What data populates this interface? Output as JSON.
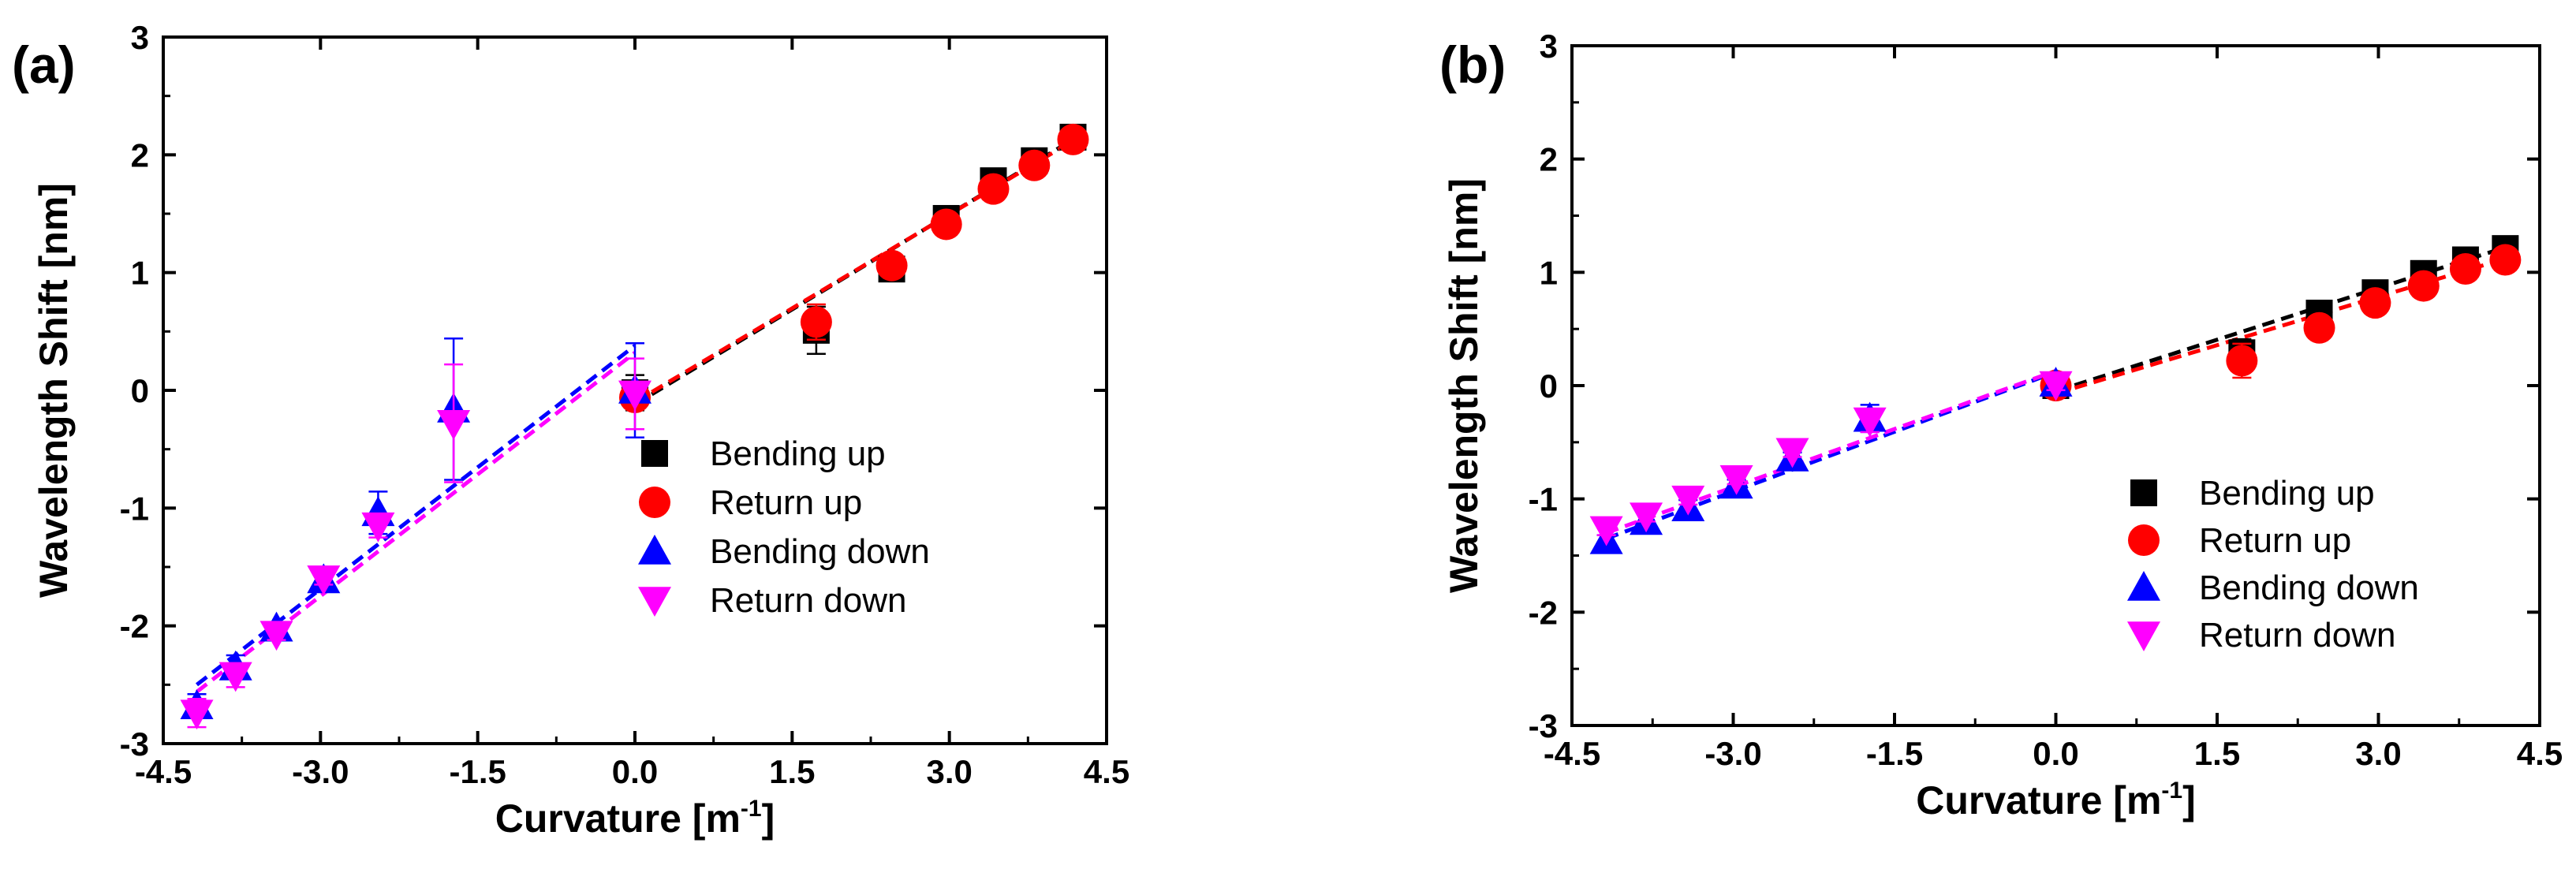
{
  "chart_data": [
    {
      "type": "scatter",
      "panel_label": "(a)",
      "xlabel": "Curvature [m",
      "xlabel_sup": "-1",
      "xlabel_close": "]",
      "ylabel": "Wavelength Shift [nm]",
      "xlim": [
        -4.5,
        4.5
      ],
      "ylim": [
        -3,
        3
      ],
      "xticks": [
        "-4.5",
        "-3.0",
        "-1.5",
        "0.0",
        "1.5",
        "3.0",
        "4.5"
      ],
      "yticks": [
        "-3",
        "-2",
        "-1",
        "0",
        "1",
        "2",
        "3"
      ],
      "legend_position": "center-right",
      "series": [
        {
          "name": "Bending up",
          "marker": "square",
          "color": "#000000",
          "x": [
            0.0,
            1.73,
            2.45,
            2.97,
            3.42,
            3.81,
            4.18
          ],
          "y": [
            -0.02,
            0.51,
            1.03,
            1.46,
            1.78,
            1.95,
            2.15
          ],
          "err": [
            0.15,
            0.2,
            0.05,
            0.05,
            0.05,
            0.05,
            0.05
          ]
        },
        {
          "name": "Return up",
          "marker": "circle",
          "color": "#ff0000",
          "x": [
            0.0,
            1.73,
            2.45,
            2.97,
            3.42,
            3.81,
            4.18
          ],
          "y": [
            -0.06,
            0.58,
            1.06,
            1.41,
            1.71,
            1.91,
            2.13
          ],
          "err": [
            0.1,
            0.15,
            0.05,
            0.05,
            0.05,
            0.05,
            0.05
          ]
        },
        {
          "name": "Bending down",
          "marker": "triangle-up",
          "color": "#0000ff",
          "x": [
            -4.18,
            -3.81,
            -3.42,
            -2.97,
            -2.45,
            -1.73,
            0.0
          ],
          "y": [
            -2.68,
            -2.35,
            -2.02,
            -1.61,
            -1.04,
            -0.16,
            0.0
          ],
          "err": [
            0.1,
            0.1,
            0.05,
            0.05,
            0.18,
            0.6,
            0.4
          ]
        },
        {
          "name": "Return down",
          "marker": "triangle-down",
          "color": "#ff00ff",
          "x": [
            -4.18,
            -3.81,
            -3.42,
            -2.97,
            -2.45,
            -1.73,
            0.0
          ],
          "y": [
            -2.74,
            -2.42,
            -2.07,
            -1.6,
            -1.15,
            -0.28,
            -0.03
          ],
          "err": [
            0.12,
            0.1,
            0.05,
            0.05,
            0.1,
            0.5,
            0.3
          ]
        }
      ],
      "fits": [
        {
          "color": "#000000",
          "x": [
            0.0,
            4.18
          ],
          "y": [
            -0.12,
            2.13
          ]
        },
        {
          "color": "#ff0000",
          "x": [
            0.0,
            4.18
          ],
          "y": [
            -0.1,
            2.12
          ]
        },
        {
          "color": "#0000ff",
          "x": [
            -4.18,
            0.0
          ],
          "y": [
            -2.5,
            0.38
          ]
        },
        {
          "color": "#ff00ff",
          "x": [
            -4.18,
            0.0
          ],
          "y": [
            -2.56,
            0.32
          ]
        }
      ]
    },
    {
      "type": "scatter",
      "panel_label": "(b)",
      "xlabel": "Curvature [m",
      "xlabel_sup": "-1",
      "xlabel_close": "]",
      "ylabel": "Wavelength Shift [nm]",
      "xlim": [
        -4.5,
        4.5
      ],
      "ylim": [
        -3,
        3
      ],
      "xticks": [
        "-4.5",
        "-3.0",
        "-1.5",
        "0.0",
        "1.5",
        "3.0",
        "4.5"
      ],
      "yticks": [
        "-3",
        "-2",
        "-1",
        "0",
        "1",
        "2",
        "3"
      ],
      "legend_position": "lower-right",
      "series": [
        {
          "name": "Bending up",
          "marker": "square",
          "color": "#000000",
          "x": [
            0.0,
            1.73,
            2.45,
            2.97,
            3.42,
            3.81,
            4.18
          ],
          "y": [
            0.0,
            0.29,
            0.64,
            0.82,
            0.99,
            1.11,
            1.21
          ],
          "err": [
            0.05,
            0.12,
            0.04,
            0.04,
            0.04,
            0.04,
            0.04
          ]
        },
        {
          "name": "Return up",
          "marker": "circle",
          "color": "#ff0000",
          "x": [
            0.0,
            1.73,
            2.45,
            2.97,
            3.42,
            3.81,
            4.18
          ],
          "y": [
            0.0,
            0.22,
            0.51,
            0.73,
            0.88,
            1.03,
            1.11
          ],
          "err": [
            0.05,
            0.15,
            0.04,
            0.04,
            0.04,
            0.04,
            0.04
          ]
        },
        {
          "name": "Bending down",
          "marker": "triangle-up",
          "color": "#0000ff",
          "x": [
            -4.18,
            -3.81,
            -3.42,
            -2.97,
            -2.45,
            -1.73,
            0.0
          ],
          "y": [
            -1.37,
            -1.2,
            -1.08,
            -0.88,
            -0.64,
            -0.29,
            0.02
          ],
          "err": [
            0.05,
            0.08,
            0.07,
            0.05,
            0.05,
            0.12,
            0.05
          ]
        },
        {
          "name": "Return down",
          "marker": "triangle-down",
          "color": "#ff00ff",
          "x": [
            -4.18,
            -3.81,
            -3.42,
            -2.97,
            -2.45,
            -1.73,
            0.0
          ],
          "y": [
            -1.27,
            -1.15,
            -1.0,
            -0.82,
            -0.58,
            -0.31,
            0.01
          ],
          "err": [
            0.05,
            0.05,
            0.05,
            0.05,
            0.05,
            0.1,
            0.05
          ]
        }
      ],
      "fits": [
        {
          "color": "#000000",
          "x": [
            0.0,
            4.18
          ],
          "y": [
            -0.05,
            1.22
          ]
        },
        {
          "color": "#ff0000",
          "x": [
            0.0,
            4.18
          ],
          "y": [
            -0.07,
            1.12
          ]
        },
        {
          "color": "#0000ff",
          "x": [
            -4.18,
            0.0
          ],
          "y": [
            -1.35,
            0.12
          ]
        },
        {
          "color": "#ff00ff",
          "x": [
            -4.18,
            0.0
          ],
          "y": [
            -1.3,
            0.13
          ]
        }
      ]
    }
  ]
}
